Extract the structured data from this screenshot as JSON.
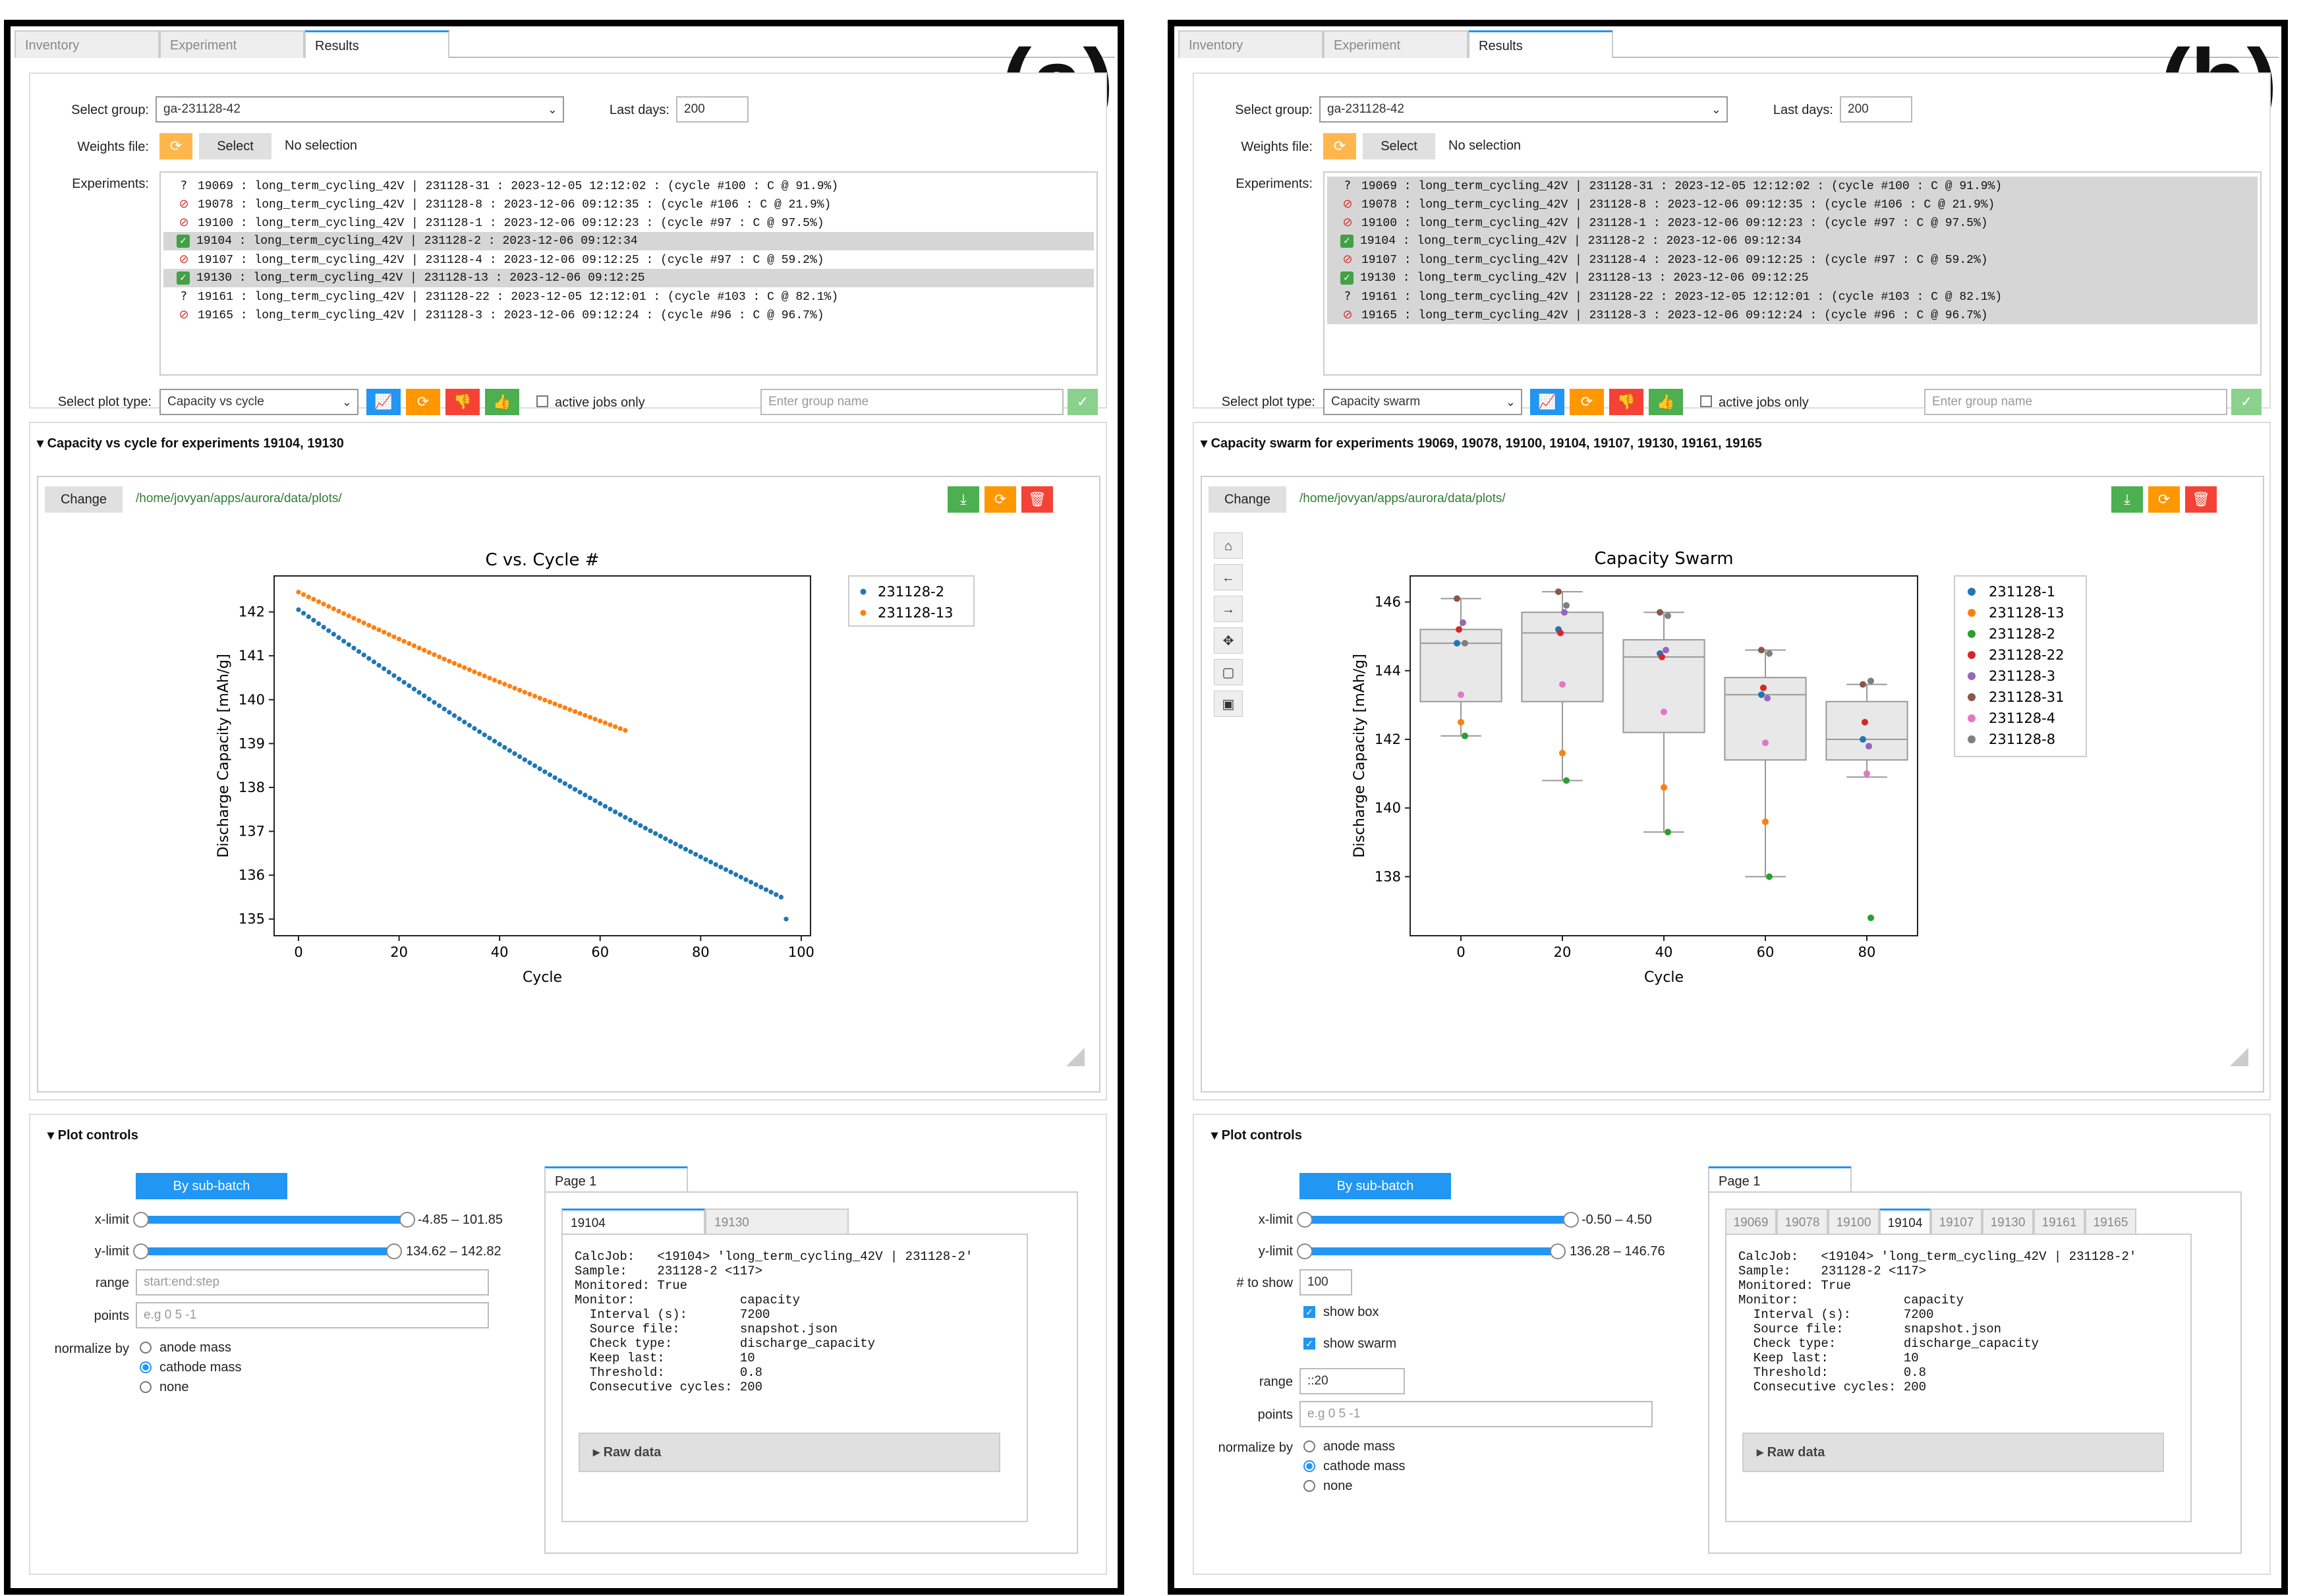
{
  "tabs": [
    "Inventory",
    "Experiment",
    "Results"
  ],
  "colors": {
    "blue": "#1f77b4",
    "orange": "#ff7f0e",
    "green": "#2ca02c",
    "red": "#d62728",
    "purple": "#9467bd",
    "brown": "#8c564b",
    "pink": "#e377c2",
    "gray": "#7f7f7f"
  },
  "panels": [
    {
      "corner": "(a)",
      "group_label": "Select group:",
      "group": "ga-231128-42",
      "days_label": "Last days:",
      "days": "200",
      "weights_label": "Weights file:",
      "select_btn": "Select",
      "no_selection": "No selection",
      "exp_label": "Experiments:",
      "experiments": [
        {
          "status": "?",
          "text": "19069 : long_term_cycling_42V | 231128-31 : 2023-12-05 12:12:02 : (cycle #100 : C @ 91.9%)",
          "hl": false
        },
        {
          "status": "x",
          "text": "19078 : long_term_cycling_42V | 231128-8 : 2023-12-06 09:12:35 : (cycle #106 : C @ 21.9%)",
          "hl": false
        },
        {
          "status": "x",
          "text": "19100 : long_term_cycling_42V | 231128-1 : 2023-12-06 09:12:23 : (cycle #97 : C @ 97.5%)",
          "hl": false
        },
        {
          "status": "ok",
          "text": "19104 : long_term_cycling_42V | 231128-2 : 2023-12-06 09:12:34",
          "hl": true
        },
        {
          "status": "x",
          "text": "19107 : long_term_cycling_42V | 231128-4 : 2023-12-06 09:12:25 : (cycle #97 : C @ 59.2%)",
          "hl": false
        },
        {
          "status": "ok",
          "text": "19130 : long_term_cycling_42V | 231128-13 : 2023-12-06 09:12:25",
          "hl": true
        },
        {
          "status": "?",
          "text": "19161 : long_term_cycling_42V | 231128-22 : 2023-12-05 12:12:01 : (cycle #103 : C @ 82.1%)",
          "hl": false
        },
        {
          "status": "x",
          "text": "19165 : long_term_cycling_42V | 231128-3 : 2023-12-06 09:12:24 : (cycle #96 : C @ 96.7%)",
          "hl": false
        }
      ],
      "plot_type_label": "Select plot type:",
      "plot_type": "Capacity vs cycle",
      "active_only": "active jobs only",
      "group_name_ph": "Enter group name",
      "section_title": "Capacity vs cycle for experiments 19104, 19130",
      "change_btn": "Change",
      "path": "/home/jovyan/apps/aurora/data/plots/",
      "controls_title": "Plot controls",
      "sub_batch": "By sub-batch",
      "xlimit_label": "x-limit",
      "xlimit": "-4.85 – 101.85",
      "ylimit_label": "y-limit",
      "ylimit": "134.62 – 142.82",
      "range_label": "range",
      "range_ph": "start:end:step",
      "points_label": "points",
      "points_ph": "e.g 0 5 -1",
      "normalize_label": "normalize by",
      "norm_opts": [
        "anode mass",
        "cathode mass",
        "none"
      ],
      "page_tab": "Page 1",
      "sub_tabs": [
        "19104",
        "19130"
      ],
      "info": "CalcJob:   <19104> 'long_term_cycling_42V | 231128-2'\nSample:    231128-2 <117>\nMonitored: True\nMonitor:              capacity\n  Interval (s):       7200\n  Source file:        snapshot.json\n  Check type:         discharge_capacity\n  Keep last:          10\n  Threshold:          0.8\n  Consecutive cycles: 200",
      "raw_data": "▸ Raw data"
    },
    {
      "corner": "(b)",
      "group_label": "Select group:",
      "group": "ga-231128-42",
      "days_label": "Last days:",
      "days": "200",
      "weights_label": "Weights file:",
      "select_btn": "Select",
      "no_selection": "No selection",
      "exp_label": "Experiments:",
      "experiments": [
        {
          "status": "?",
          "text": "19069 : long_term_cycling_42V | 231128-31 : 2023-12-05 12:12:02 : (cycle #100 : C @ 91.9%)",
          "hl": true
        },
        {
          "status": "x",
          "text": "19078 : long_term_cycling_42V | 231128-8 : 2023-12-06 09:12:35 : (cycle #106 : C @ 21.9%)",
          "hl": true
        },
        {
          "status": "x",
          "text": "19100 : long_term_cycling_42V | 231128-1 : 2023-12-06 09:12:23 : (cycle #97 : C @ 97.5%)",
          "hl": true
        },
        {
          "status": "ok",
          "text": "19104 : long_term_cycling_42V | 231128-2 : 2023-12-06 09:12:34",
          "hl": true
        },
        {
          "status": "x",
          "text": "19107 : long_term_cycling_42V | 231128-4 : 2023-12-06 09:12:25 : (cycle #97 : C @ 59.2%)",
          "hl": true
        },
        {
          "status": "ok",
          "text": "19130 : long_term_cycling_42V | 231128-13 : 2023-12-06 09:12:25",
          "hl": true
        },
        {
          "status": "?",
          "text": "19161 : long_term_cycling_42V | 231128-22 : 2023-12-05 12:12:01 : (cycle #103 : C @ 82.1%)",
          "hl": true
        },
        {
          "status": "x",
          "text": "19165 : long_term_cycling_42V | 231128-3 : 2023-12-06 09:12:24 : (cycle #96 : C @ 96.7%)",
          "hl": true
        }
      ],
      "plot_type_label": "Select plot type:",
      "plot_type": "Capacity swarm",
      "active_only": "active jobs only",
      "group_name_ph": "Enter group name",
      "section_title": "Capacity swarm for experiments 19069, 19078, 19100, 19104, 19107, 19130, 19161, 19165",
      "change_btn": "Change",
      "path": "/home/jovyan/apps/aurora/data/plots/",
      "controls_title": "Plot controls",
      "sub_batch": "By sub-batch",
      "xlimit_label": "x-limit",
      "xlimit": "-0.50 – 4.50",
      "ylimit_label": "y-limit",
      "ylimit": "136.28 – 146.76",
      "show_label": "# to show",
      "show_val": "100",
      "show_box": "show box",
      "show_swarm": "show swarm",
      "range_label": "range",
      "range_val": "::20",
      "points_label": "points",
      "points_ph": "e.g 0 5 -1",
      "normalize_label": "normalize by",
      "norm_opts": [
        "anode mass",
        "cathode mass",
        "none"
      ],
      "page_tab": "Page 1",
      "sub_tabs": [
        "19069",
        "19078",
        "19100",
        "19104",
        "19107",
        "19130",
        "19161",
        "19165"
      ],
      "info": "CalcJob:   <19104> 'long_term_cycling_42V | 231128-2'\nSample:    231128-2 <117>\nMonitored: True\nMonitor:              capacity\n  Interval (s):       7200\n  Source file:        snapshot.json\n  Check type:         discharge_capacity\n  Keep last:          10\n  Threshold:          0.8\n  Consecutive cycles: 200",
      "raw_data": "▸ Raw data"
    }
  ],
  "chart_data": [
    {
      "type": "scatter",
      "title": "C vs. Cycle #",
      "xlabel": "Cycle",
      "ylabel": "Discharge Capacity [mAh/g]",
      "xlim": [
        -4.85,
        101.85
      ],
      "ylim": [
        134.62,
        142.82
      ],
      "xticks": [
        0,
        20,
        40,
        60,
        80,
        100
      ],
      "yticks": [
        135,
        136,
        137,
        138,
        139,
        140,
        141,
        142
      ],
      "legend_position": "outside-right",
      "series": [
        {
          "name": "231128-2",
          "color": "#1f77b4",
          "x0": 0,
          "x1": 96,
          "y0": 142.05,
          "y1": 135.5,
          "last_x": 97,
          "last_y": 135.0
        },
        {
          "name": "231128-13",
          "color": "#ff7f0e",
          "x0": 0,
          "x1": 65,
          "y0": 142.45,
          "y1": 139.3
        }
      ]
    },
    {
      "type": "box+swarm",
      "title": "Capacity Swarm",
      "xlabel": "Cycle",
      "ylabel": "Discharge Capacity [mAh/g]",
      "categories": [
        "0",
        "20",
        "40",
        "60",
        "80"
      ],
      "ylim": [
        136.28,
        146.76
      ],
      "yticks": [
        138,
        140,
        142,
        144,
        146
      ],
      "legend_position": "outside-right",
      "boxes": [
        {
          "q1": 143.1,
          "med": 144.8,
          "q3": 145.2,
          "lo": 142.1,
          "hi": 146.1
        },
        {
          "q1": 143.1,
          "med": 145.1,
          "q3": 145.7,
          "lo": 140.8,
          "hi": 146.3
        },
        {
          "q1": 142.2,
          "med": 144.4,
          "q3": 144.9,
          "lo": 139.3,
          "hi": 145.7
        },
        {
          "q1": 141.4,
          "med": 143.3,
          "q3": 143.8,
          "lo": 138.0,
          "hi": 144.6
        },
        {
          "q1": 141.4,
          "med": 142.0,
          "q3": 143.1,
          "lo": 140.9,
          "hi": 143.6
        }
      ],
      "series": [
        {
          "name": "231128-1",
          "color": "#1f77b4",
          "values": [
            144.8,
            145.2,
            144.5,
            143.3,
            142.0
          ]
        },
        {
          "name": "231128-13",
          "color": "#ff7f0e",
          "values": [
            142.5,
            141.6,
            140.6,
            139.6,
            null
          ]
        },
        {
          "name": "231128-2",
          "color": "#2ca02c",
          "values": [
            142.1,
            140.8,
            139.3,
            138.0,
            136.8
          ]
        },
        {
          "name": "231128-22",
          "color": "#d62728",
          "values": [
            145.2,
            145.1,
            144.4,
            143.5,
            142.5
          ]
        },
        {
          "name": "231128-3",
          "color": "#9467bd",
          "values": [
            145.4,
            145.7,
            144.6,
            143.2,
            141.8
          ]
        },
        {
          "name": "231128-31",
          "color": "#8c564b",
          "values": [
            146.1,
            146.3,
            145.7,
            144.6,
            143.6
          ]
        },
        {
          "name": "231128-4",
          "color": "#e377c2",
          "values": [
            143.3,
            143.6,
            142.8,
            141.9,
            141.0
          ]
        },
        {
          "name": "231128-8",
          "color": "#7f7f7f",
          "values": [
            144.8,
            145.9,
            145.6,
            144.5,
            143.7
          ]
        }
      ]
    }
  ]
}
